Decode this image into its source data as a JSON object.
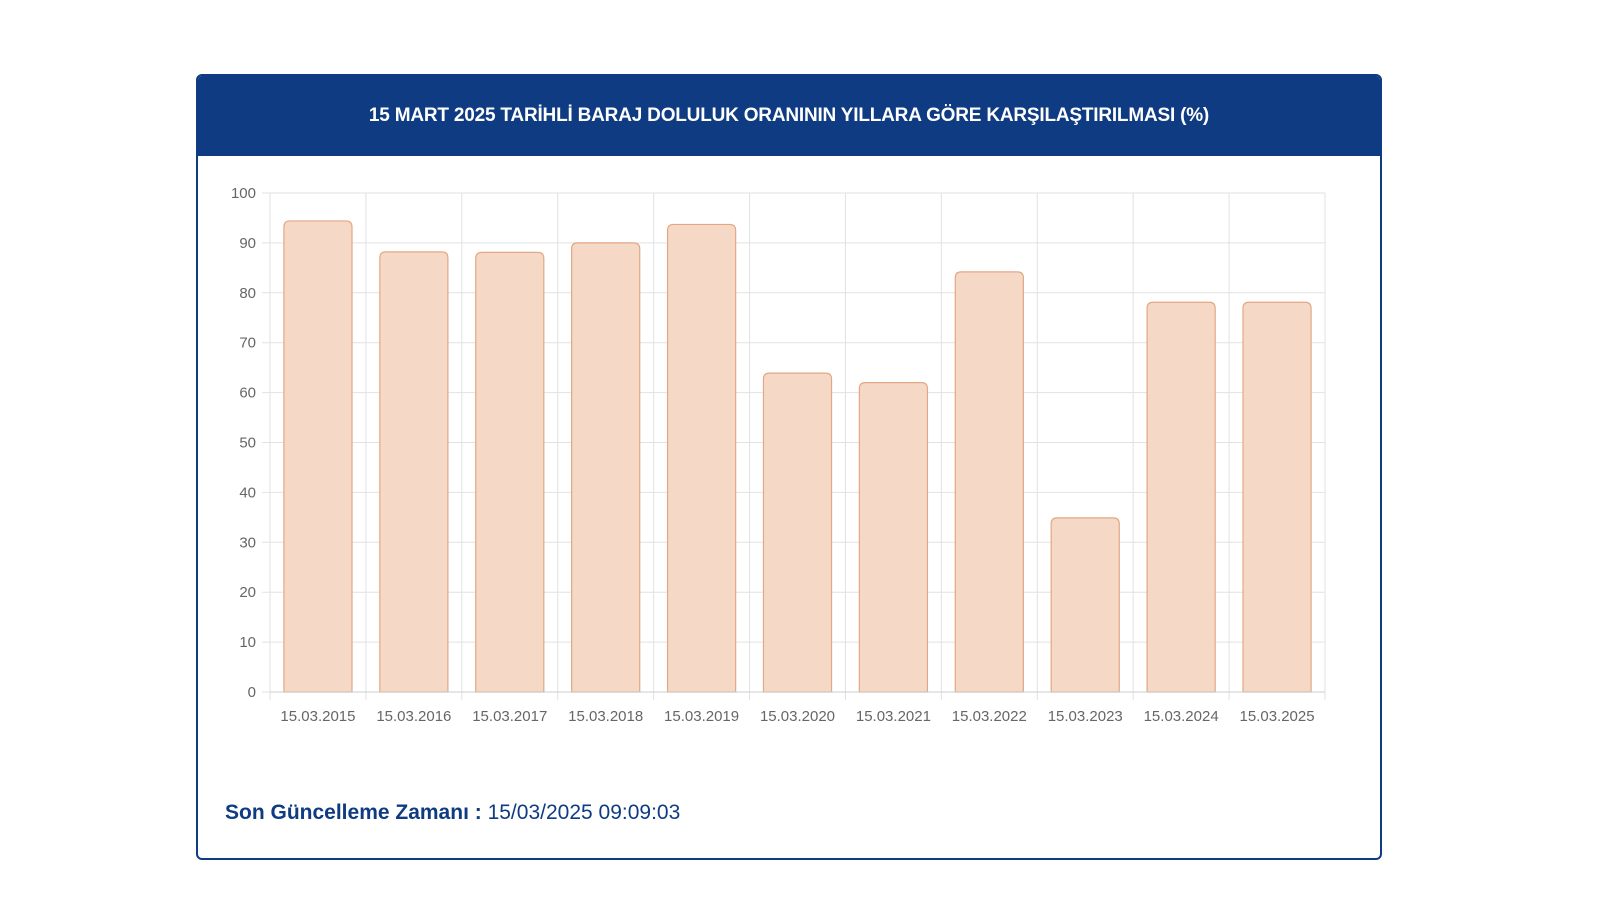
{
  "header": {
    "title": "15 MART 2025 TARİHLİ BARAJ DOLULUK ORANININ YILLARA GÖRE KARŞILAŞTIRILMASI (%)"
  },
  "footer": {
    "label": "Son Güncelleme Zamanı :",
    "value": "15/03/2025 09:09:03"
  },
  "colors": {
    "header_bg": "#0f3b82",
    "bar_fill": "#f5d8c6",
    "bar_stroke": "#e2a886",
    "grid": "#e2e2e2",
    "tick_text": "#666666"
  },
  "chart_data": {
    "type": "bar",
    "title": "15 MART 2025 TARİHLİ BARAJ DOLULUK ORANININ YILLARA GÖRE KARŞILAŞTIRILMASI (%)",
    "categories": [
      "15.03.2015",
      "15.03.2016",
      "15.03.2017",
      "15.03.2018",
      "15.03.2019",
      "15.03.2020",
      "15.03.2021",
      "15.03.2022",
      "15.03.2023",
      "15.03.2024",
      "15.03.2025"
    ],
    "values": [
      94.4,
      88.2,
      88.1,
      90.0,
      93.7,
      63.9,
      62.0,
      84.2,
      34.9,
      78.1,
      78.1
    ],
    "yticks": [
      "0",
      "10",
      "20",
      "30",
      "40",
      "50",
      "60",
      "70",
      "80",
      "90",
      "100"
    ],
    "ylim": [
      0,
      100
    ],
    "xlabel": "",
    "ylabel": "",
    "grid": true,
    "legend": "none"
  }
}
